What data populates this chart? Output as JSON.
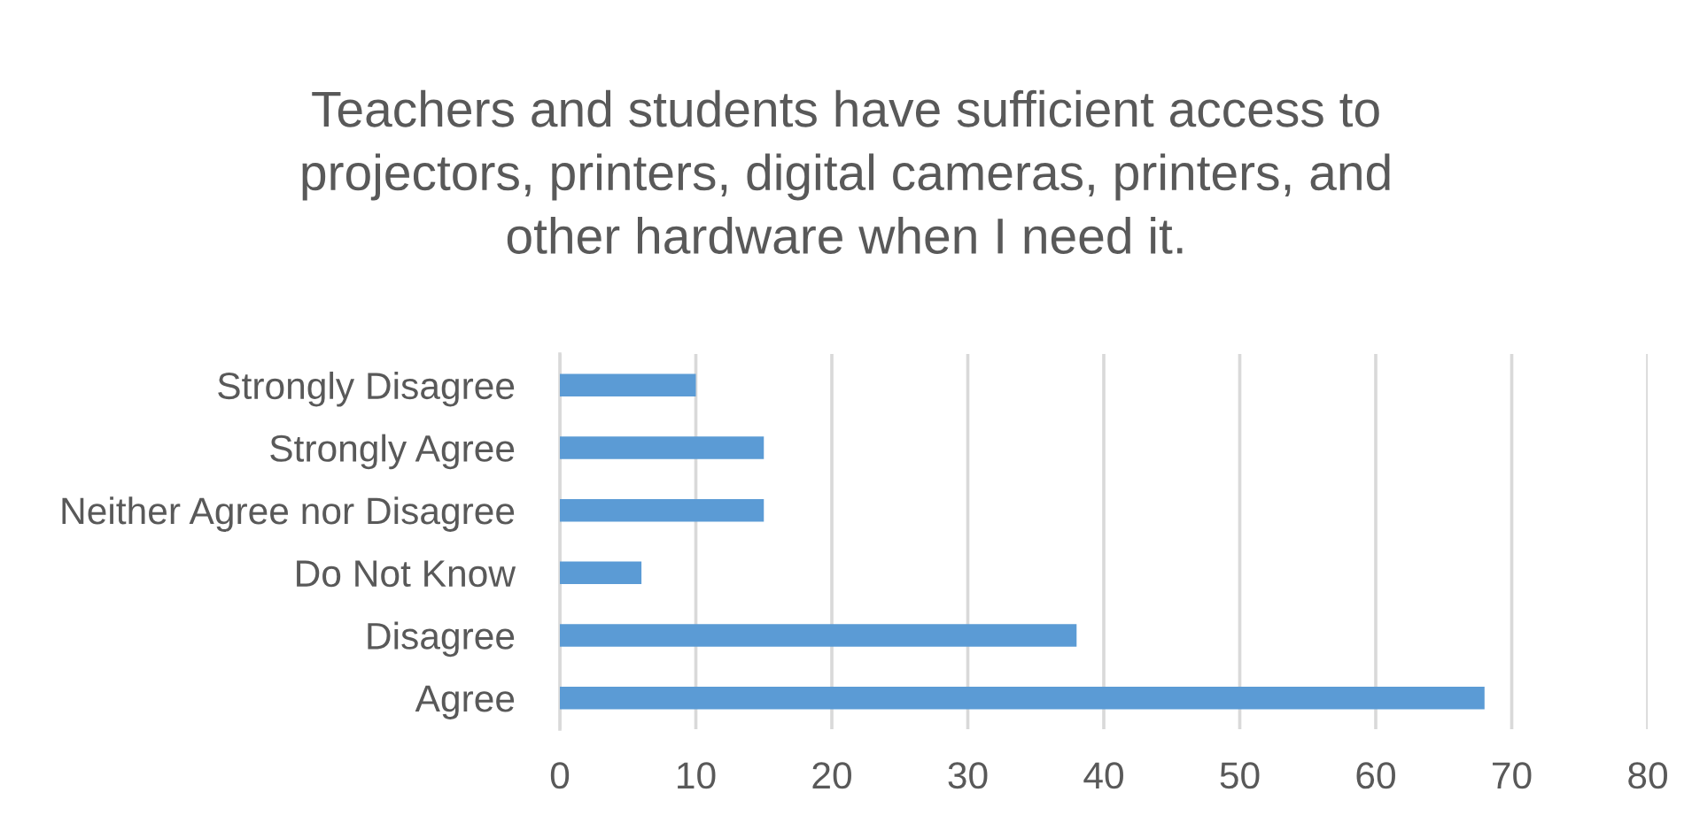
{
  "chart_data": {
    "type": "bar",
    "orientation": "horizontal",
    "title": "Teachers and students have sufficient access to projectors, printers, digital cameras, printers, and other hardware when I need it.",
    "categories": [
      "Strongly Disagree",
      "Strongly Agree",
      "Neither Agree nor Disagree",
      "Do Not Know",
      "Disagree",
      "Agree"
    ],
    "values": [
      10,
      15,
      15,
      6,
      38,
      68
    ],
    "color": "#5b9bd5",
    "xlim": [
      0,
      80
    ],
    "xticks": [
      0,
      10,
      20,
      30,
      40,
      50,
      60,
      70,
      80
    ],
    "grid": "x",
    "legend": false
  }
}
